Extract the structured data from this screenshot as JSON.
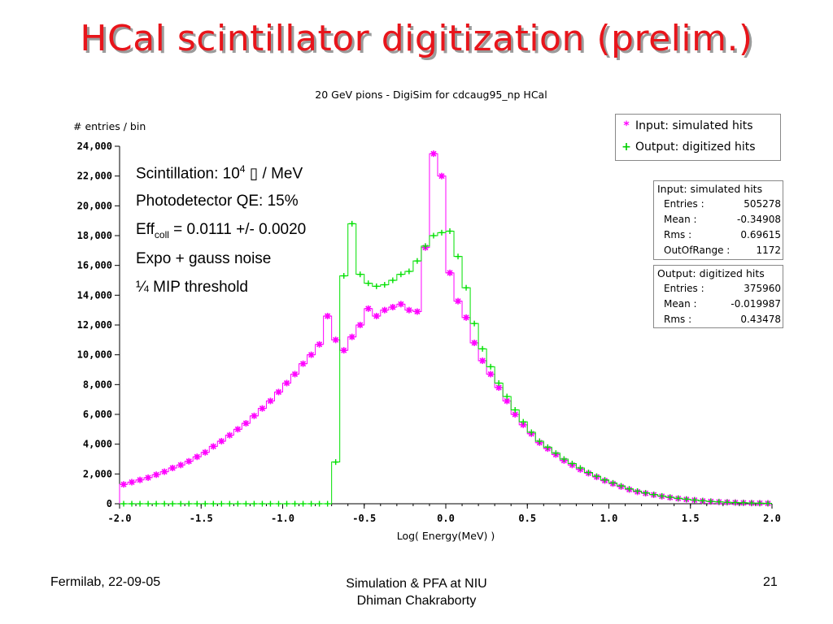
{
  "slide": {
    "title": "HCal scintillator digitization (prelim.)",
    "footer_left": "Fermilab, 22-09-05",
    "footer_center_line1": "Simulation & PFA at NIU",
    "footer_center_line2": "Dhiman Chakraborty",
    "page_number": "21"
  },
  "annotations": {
    "line1_pre": "Scintillation: 10",
    "line1_sup": "4",
    "line1_glyph": "▯",
    "line1_post": " / MeV",
    "line2": "Photodetector QE:  15%",
    "line3_pre": "Eff",
    "line3_sub": "coll",
    "line3_post": " = 0.0111 +/- 0.0020",
    "line4": "Expo + gauss noise",
    "line5": "¼ MIP threshold"
  },
  "legend": {
    "input": "Input: simulated hits",
    "output": "Output: digitized hits",
    "input_marker": "*",
    "output_marker": "+"
  },
  "stats_input": {
    "header": "Input: simulated hits",
    "rows": [
      {
        "key": "Entries :",
        "value": "505278"
      },
      {
        "key": "Mean :",
        "value": "-0.34908"
      },
      {
        "key": "Rms :",
        "value": "0.69615"
      },
      {
        "key": "OutOfRange :",
        "value": "1172"
      }
    ]
  },
  "stats_output": {
    "header": "Output: digitized hits",
    "rows": [
      {
        "key": "Entries :",
        "value": "375960"
      },
      {
        "key": "Mean :",
        "value": "-0.019987"
      },
      {
        "key": "Rms :",
        "value": "0.43478"
      }
    ]
  },
  "chart_data": {
    "type": "line",
    "title": "20 GeV pions - DigiSim for cdcaug95_np HCal",
    "xlabel": "Log( Energy(MeV) )",
    "ylabel": "# entries / bin",
    "xlim": [
      -2.0,
      2.0
    ],
    "ylim": [
      0,
      24000
    ],
    "xticks": [
      -2.0,
      -1.5,
      -1.0,
      -0.5,
      0.0,
      0.5,
      1.0,
      1.5,
      2.0
    ],
    "xtick_labels": [
      "-2.0",
      "-1.5",
      "-1.0",
      "-0.5",
      "0.0",
      "0.5",
      "1.0",
      "1.5",
      "2.0"
    ],
    "yticks": [
      0,
      2000,
      4000,
      6000,
      8000,
      10000,
      12000,
      14000,
      16000,
      18000,
      20000,
      22000,
      24000
    ],
    "ytick_labels": [
      "0",
      "2,000",
      "4,000",
      "6,000",
      "8,000",
      "10,000",
      "12,000",
      "14,000",
      "16,000",
      "18,000",
      "20,000",
      "22,000",
      "24,000"
    ],
    "grid": false,
    "legend_position": "top-right",
    "bin_width": 0.05,
    "x": [
      -1.975,
      -1.925,
      -1.875,
      -1.825,
      -1.775,
      -1.725,
      -1.675,
      -1.625,
      -1.575,
      -1.525,
      -1.475,
      -1.425,
      -1.375,
      -1.325,
      -1.275,
      -1.225,
      -1.175,
      -1.125,
      -1.075,
      -1.025,
      -0.975,
      -0.925,
      -0.875,
      -0.825,
      -0.775,
      -0.725,
      -0.675,
      -0.625,
      -0.575,
      -0.525,
      -0.475,
      -0.425,
      -0.375,
      -0.325,
      -0.275,
      -0.225,
      -0.175,
      -0.125,
      -0.075,
      -0.025,
      0.025,
      0.075,
      0.125,
      0.175,
      0.225,
      0.275,
      0.325,
      0.375,
      0.425,
      0.475,
      0.525,
      0.575,
      0.625,
      0.675,
      0.725,
      0.775,
      0.825,
      0.875,
      0.925,
      0.975,
      1.025,
      1.075,
      1.125,
      1.175,
      1.225,
      1.275,
      1.325,
      1.375,
      1.425,
      1.475,
      1.525,
      1.575,
      1.625,
      1.675,
      1.725,
      1.775,
      1.825,
      1.875,
      1.925,
      1.975
    ],
    "series": [
      {
        "name": "Input: simulated hits",
        "color": "#ff00ff",
        "marker": "*",
        "values": [
          1300,
          1450,
          1600,
          1750,
          1950,
          2150,
          2400,
          2600,
          2850,
          3150,
          3450,
          3850,
          4200,
          4600,
          5000,
          5400,
          5900,
          6400,
          6900,
          7500,
          8100,
          8700,
          9400,
          10000,
          10700,
          12600,
          11000,
          10300,
          11200,
          12000,
          13100,
          12600,
          13000,
          13200,
          13400,
          13000,
          12900,
          17200,
          23500,
          22000,
          15500,
          13600,
          12500,
          10800,
          9600,
          8700,
          7800,
          6900,
          6000,
          5300,
          4700,
          4100,
          3700,
          3300,
          2900,
          2600,
          2300,
          2050,
          1800,
          1550,
          1350,
          1150,
          950,
          800,
          700,
          600,
          500,
          420,
          350,
          290,
          240,
          190,
          150,
          120,
          100,
          80,
          60,
          45,
          35,
          25
        ]
      },
      {
        "name": "Output: digitized hits",
        "color": "#00e000",
        "marker": "+",
        "values": [
          0,
          0,
          0,
          0,
          0,
          0,
          0,
          0,
          0,
          0,
          0,
          0,
          0,
          0,
          0,
          0,
          0,
          0,
          0,
          0,
          0,
          0,
          0,
          0,
          0,
          0,
          2800,
          15300,
          18800,
          15400,
          14800,
          14600,
          14700,
          15000,
          15400,
          15600,
          16300,
          17300,
          18000,
          18200,
          18300,
          16600,
          14500,
          12100,
          10400,
          9200,
          8100,
          7200,
          6300,
          5500,
          4800,
          4200,
          3800,
          3400,
          3000,
          2700,
          2400,
          2100,
          1850,
          1600,
          1400,
          1200,
          1000,
          850,
          730,
          620,
          520,
          440,
          370,
          310,
          250,
          200,
          160,
          130,
          100,
          80,
          65,
          50,
          38,
          28
        ]
      }
    ]
  }
}
